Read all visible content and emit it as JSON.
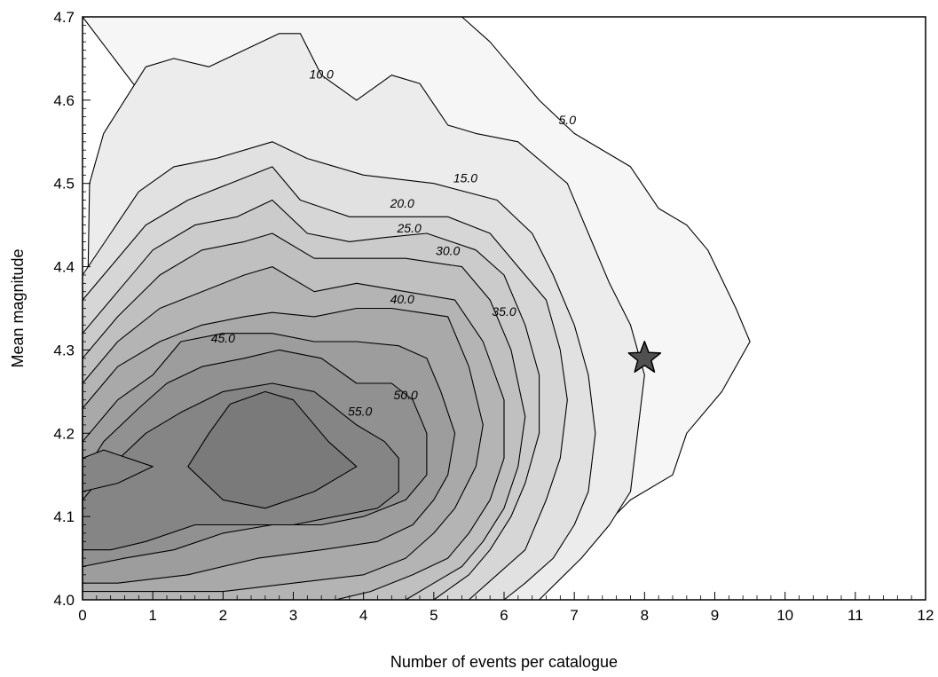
{
  "chart_data": {
    "type": "contour",
    "xlabel": "Number of events per catalogue",
    "ylabel": "Mean magnitude",
    "xlim": [
      0,
      12
    ],
    "ylim": [
      4.0,
      4.7
    ],
    "x_ticks": [
      "0",
      "1",
      "2",
      "3",
      "4",
      "5",
      "6",
      "7",
      "8",
      "9",
      "10",
      "11",
      "12"
    ],
    "y_ticks": [
      "4.0",
      "4.1",
      "4.2",
      "4.3",
      "4.4",
      "4.5",
      "4.6",
      "4.7"
    ],
    "grid": false,
    "contour_levels": [
      5,
      10,
      15,
      20,
      25,
      30,
      35,
      40,
      45,
      50,
      55
    ],
    "contour_labels": [
      {
        "text": "5.0",
        "x": 6.9,
        "y": 4.575
      },
      {
        "text": "10.0",
        "x": 3.4,
        "y": 4.63
      },
      {
        "text": "15.0",
        "x": 5.45,
        "y": 4.505
      },
      {
        "text": "20.0",
        "x": 4.55,
        "y": 4.475
      },
      {
        "text": "25.0",
        "x": 4.65,
        "y": 4.445
      },
      {
        "text": "30.0",
        "x": 5.2,
        "y": 4.418
      },
      {
        "text": "35.0",
        "x": 6.0,
        "y": 4.345
      },
      {
        "text": "40.0",
        "x": 4.55,
        "y": 4.36
      },
      {
        "text": "45.0",
        "x": 2.0,
        "y": 4.313
      },
      {
        "text": "50.0",
        "x": 4.6,
        "y": 4.245
      },
      {
        "text": "55.0",
        "x": 3.95,
        "y": 4.225
      }
    ],
    "contours": [
      {
        "level": 5,
        "fill": "#f6f6f6",
        "points": [
          [
            6.3,
            4.0
          ],
          [
            7.2,
            4.07
          ],
          [
            7.8,
            4.12
          ],
          [
            8.4,
            4.15
          ],
          [
            8.6,
            4.2
          ],
          [
            9.1,
            4.25
          ],
          [
            9.5,
            4.31
          ],
          [
            9.3,
            4.35
          ],
          [
            8.9,
            4.42
          ],
          [
            8.6,
            4.45
          ],
          [
            8.2,
            4.47
          ],
          [
            7.8,
            4.52
          ],
          [
            7.0,
            4.56
          ],
          [
            6.5,
            4.6
          ],
          [
            6.2,
            4.63
          ],
          [
            5.8,
            4.67
          ],
          [
            5.4,
            4.7
          ]
        ]
      },
      {
        "level": 10,
        "fill": "#ececec",
        "points": [
          [
            0.1,
            4.5
          ],
          [
            0.3,
            4.56
          ],
          [
            0.6,
            4.6
          ],
          [
            0.9,
            4.64
          ],
          [
            1.3,
            4.65
          ],
          [
            1.8,
            4.64
          ],
          [
            2.3,
            4.66
          ],
          [
            2.8,
            4.68
          ],
          [
            3.1,
            4.68
          ],
          [
            3.4,
            4.63
          ],
          [
            3.9,
            4.6
          ],
          [
            4.4,
            4.63
          ],
          [
            4.8,
            4.62
          ],
          [
            5.2,
            4.57
          ],
          [
            5.6,
            4.56
          ],
          [
            6.2,
            4.55
          ],
          [
            6.9,
            4.5
          ],
          [
            7.2,
            4.44
          ],
          [
            7.5,
            4.38
          ],
          [
            7.8,
            4.33
          ],
          [
            8.0,
            4.27
          ],
          [
            7.9,
            4.2
          ],
          [
            7.8,
            4.13
          ],
          [
            7.5,
            4.09
          ],
          [
            7.1,
            4.05
          ],
          [
            6.5,
            4.0
          ]
        ]
      },
      {
        "level": 15,
        "fill": "#e1e1e1",
        "points": [
          [
            0.0,
            4.39
          ],
          [
            0.4,
            4.44
          ],
          [
            0.8,
            4.49
          ],
          [
            1.3,
            4.52
          ],
          [
            1.9,
            4.53
          ],
          [
            2.7,
            4.55
          ],
          [
            3.2,
            4.53
          ],
          [
            4.0,
            4.51
          ],
          [
            5.0,
            4.5
          ],
          [
            5.9,
            4.48
          ],
          [
            6.4,
            4.44
          ],
          [
            6.7,
            4.39
          ],
          [
            7.0,
            4.33
          ],
          [
            7.2,
            4.27
          ],
          [
            7.3,
            4.2
          ],
          [
            7.2,
            4.13
          ],
          [
            7.0,
            4.09
          ],
          [
            6.7,
            4.05
          ],
          [
            6.3,
            4.02
          ],
          [
            6.0,
            4.0
          ]
        ]
      },
      {
        "level": 20,
        "fill": "#d6d6d6",
        "points": [
          [
            0.0,
            4.36
          ],
          [
            0.4,
            4.4
          ],
          [
            0.9,
            4.45
          ],
          [
            1.5,
            4.48
          ],
          [
            2.1,
            4.5
          ],
          [
            2.7,
            4.52
          ],
          [
            3.1,
            4.48
          ],
          [
            3.8,
            4.46
          ],
          [
            4.5,
            4.46
          ],
          [
            5.2,
            4.46
          ],
          [
            5.8,
            4.44
          ],
          [
            6.2,
            4.4
          ],
          [
            6.6,
            4.36
          ],
          [
            6.8,
            4.3
          ],
          [
            6.9,
            4.24
          ],
          [
            6.8,
            4.17
          ],
          [
            6.6,
            4.12
          ],
          [
            6.3,
            4.06
          ],
          [
            5.9,
            4.03
          ],
          [
            5.5,
            4.0
          ]
        ]
      },
      {
        "level": 25,
        "fill": "#cbcbcb",
        "points": [
          [
            0.0,
            4.32
          ],
          [
            0.5,
            4.37
          ],
          [
            1.0,
            4.42
          ],
          [
            1.6,
            4.45
          ],
          [
            2.2,
            4.46
          ],
          [
            2.7,
            4.48
          ],
          [
            3.2,
            4.44
          ],
          [
            3.8,
            4.43
          ],
          [
            4.3,
            4.435
          ],
          [
            4.9,
            4.44
          ],
          [
            5.6,
            4.42
          ],
          [
            6.0,
            4.39
          ],
          [
            6.3,
            4.33
          ],
          [
            6.5,
            4.27
          ],
          [
            6.5,
            4.2
          ],
          [
            6.3,
            4.14
          ],
          [
            6.1,
            4.1
          ],
          [
            5.8,
            4.06
          ],
          [
            5.5,
            4.03
          ],
          [
            5.0,
            4.0
          ]
        ]
      },
      {
        "level": 30,
        "fill": "#c0c0c0",
        "points": [
          [
            0.0,
            4.29
          ],
          [
            0.5,
            4.34
          ],
          [
            1.1,
            4.39
          ],
          [
            1.7,
            4.42
          ],
          [
            2.3,
            4.43
          ],
          [
            2.7,
            4.44
          ],
          [
            3.3,
            4.41
          ],
          [
            3.9,
            4.41
          ],
          [
            4.6,
            4.41
          ],
          [
            5.4,
            4.4
          ],
          [
            5.8,
            4.36
          ],
          [
            6.1,
            4.3
          ],
          [
            6.3,
            4.22
          ],
          [
            6.2,
            4.16
          ],
          [
            6.0,
            4.11
          ],
          [
            5.7,
            4.07
          ],
          [
            5.4,
            4.04
          ],
          [
            5.0,
            4.02
          ],
          [
            4.6,
            4.0
          ]
        ]
      },
      {
        "level": 35,
        "fill": "#b4b4b4",
        "points": [
          [
            0.0,
            4.26
          ],
          [
            0.5,
            4.31
          ],
          [
            1.1,
            4.35
          ],
          [
            1.7,
            4.37
          ],
          [
            2.3,
            4.39
          ],
          [
            2.7,
            4.4
          ],
          [
            3.3,
            4.37
          ],
          [
            3.9,
            4.38
          ],
          [
            4.6,
            4.37
          ],
          [
            5.3,
            4.36
          ],
          [
            5.7,
            4.31
          ],
          [
            6.0,
            4.24
          ],
          [
            6.0,
            4.17
          ],
          [
            5.8,
            4.12
          ],
          [
            5.5,
            4.08
          ],
          [
            5.2,
            4.05
          ],
          [
            4.7,
            4.03
          ],
          [
            4.1,
            4.01
          ],
          [
            3.6,
            4.0
          ]
        ]
      },
      {
        "level": 40,
        "fill": "#a9a9a9",
        "points": [
          [
            0.0,
            4.23
          ],
          [
            0.5,
            4.28
          ],
          [
            1.1,
            4.31
          ],
          [
            1.7,
            4.33
          ],
          [
            2.3,
            4.34
          ],
          [
            2.7,
            4.345
          ],
          [
            3.3,
            4.34
          ],
          [
            3.9,
            4.35
          ],
          [
            4.4,
            4.35
          ],
          [
            4.8,
            4.345
          ],
          [
            5.2,
            4.34
          ],
          [
            5.5,
            4.28
          ],
          [
            5.7,
            4.21
          ],
          [
            5.6,
            4.16
          ],
          [
            5.3,
            4.11
          ],
          [
            5.0,
            4.08
          ],
          [
            4.6,
            4.05
          ],
          [
            4.0,
            4.03
          ],
          [
            3.0,
            4.02
          ],
          [
            2.0,
            4.01
          ],
          [
            1.0,
            4.01
          ],
          [
            0.0,
            4.01
          ]
        ]
      },
      {
        "level": 45,
        "fill": "#9d9d9d",
        "points": [
          [
            0.0,
            4.19
          ],
          [
            0.5,
            4.24
          ],
          [
            1.0,
            4.27
          ],
          [
            1.4,
            4.31
          ],
          [
            2.0,
            4.32
          ],
          [
            2.7,
            4.32
          ],
          [
            3.3,
            4.31
          ],
          [
            3.9,
            4.31
          ],
          [
            4.5,
            4.305
          ],
          [
            4.9,
            4.29
          ],
          [
            5.1,
            4.25
          ],
          [
            5.3,
            4.2
          ],
          [
            5.2,
            4.15
          ],
          [
            5.0,
            4.12
          ],
          [
            4.7,
            4.09
          ],
          [
            4.2,
            4.07
          ],
          [
            3.4,
            4.06
          ],
          [
            2.5,
            4.05
          ],
          [
            1.5,
            4.03
          ],
          [
            0.5,
            4.02
          ],
          [
            0.0,
            4.02
          ]
        ]
      },
      {
        "level": 50,
        "fill": "#919191",
        "points": [
          [
            0.0,
            4.15
          ],
          [
            0.3,
            4.19
          ],
          [
            0.8,
            4.23
          ],
          [
            1.2,
            4.26
          ],
          [
            1.7,
            4.28
          ],
          [
            2.3,
            4.29
          ],
          [
            2.8,
            4.3
          ],
          [
            3.4,
            4.29
          ],
          [
            3.9,
            4.26
          ],
          [
            4.4,
            4.26
          ],
          [
            4.7,
            4.24
          ],
          [
            4.9,
            4.2
          ],
          [
            4.9,
            4.15
          ],
          [
            4.6,
            4.12
          ],
          [
            4.0,
            4.1
          ],
          [
            3.4,
            4.09
          ],
          [
            2.7,
            4.09
          ],
          [
            2.0,
            4.08
          ],
          [
            1.3,
            4.06
          ],
          [
            0.6,
            4.05
          ],
          [
            0.0,
            4.04
          ]
        ]
      },
      {
        "level": 55,
        "fill": "#858585",
        "points": [
          [
            0.0,
            4.12
          ],
          [
            0.4,
            4.16
          ],
          [
            0.9,
            4.2
          ],
          [
            1.4,
            4.225
          ],
          [
            2.0,
            4.25
          ],
          [
            2.7,
            4.26
          ],
          [
            3.3,
            4.25
          ],
          [
            3.9,
            4.21
          ],
          [
            4.3,
            4.19
          ],
          [
            4.5,
            4.17
          ],
          [
            4.5,
            4.13
          ],
          [
            4.2,
            4.11
          ],
          [
            3.6,
            4.1
          ],
          [
            3.0,
            4.09
          ],
          [
            2.3,
            4.09
          ],
          [
            1.6,
            4.09
          ],
          [
            0.9,
            4.07
          ],
          [
            0.4,
            4.06
          ],
          [
            0.0,
            4.06
          ]
        ]
      },
      {
        "level": 55,
        "fill": "#7a7a7a",
        "points": [
          [
            1.5,
            4.16
          ],
          [
            1.8,
            4.2
          ],
          [
            2.1,
            4.235
          ],
          [
            2.6,
            4.25
          ],
          [
            3.0,
            4.24
          ],
          [
            3.5,
            4.19
          ],
          [
            3.9,
            4.16
          ],
          [
            3.3,
            4.13
          ],
          [
            2.6,
            4.11
          ],
          [
            2.0,
            4.12
          ]
        ]
      },
      {
        "level": 55,
        "fill": "#858585",
        "points": [
          [
            0.0,
            4.17
          ],
          [
            0.3,
            4.18
          ],
          [
            1.0,
            4.16
          ],
          [
            0.5,
            4.14
          ],
          [
            0.0,
            4.13
          ]
        ]
      }
    ],
    "marker": {
      "shape": "star",
      "x": 8.0,
      "y": 4.29,
      "color": "#505050"
    }
  }
}
